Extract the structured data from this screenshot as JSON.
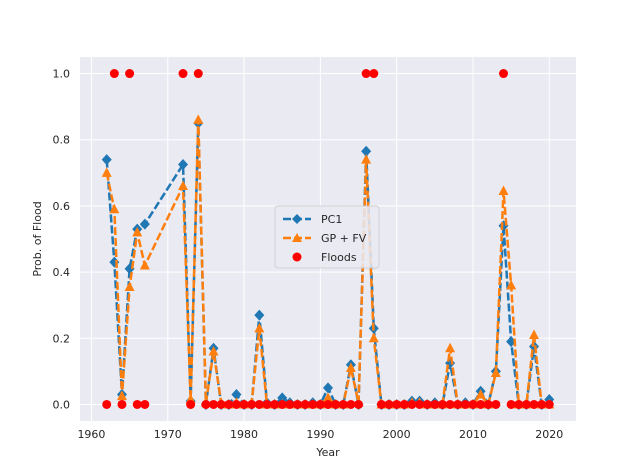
{
  "chart_data": {
    "type": "line",
    "title": "",
    "xlabel": "Year",
    "ylabel": "Prob. of Flood",
    "xlim": [
      1958.5,
      2023.5
    ],
    "ylim": [
      -0.05,
      1.05
    ],
    "xticks": [
      1960,
      1970,
      1980,
      1990,
      2000,
      2010,
      2020
    ],
    "yticks": [
      0.0,
      0.2,
      0.4,
      0.6,
      0.8,
      1.0
    ],
    "xtick_labels": [
      "1960",
      "1970",
      "1980",
      "1990",
      "2000",
      "2010",
      "2020"
    ],
    "ytick_labels": [
      "0.0",
      "0.2",
      "0.4",
      "0.6",
      "0.8",
      "1.0"
    ],
    "grid": true,
    "legend_position": "center",
    "x": [
      1962,
      1963,
      1964,
      1965,
      1966,
      1967,
      1972,
      1973,
      1974,
      1975,
      1976,
      1977,
      1978,
      1979,
      1980,
      1981,
      1982,
      1983,
      1984,
      1985,
      1986,
      1987,
      1988,
      1989,
      1990,
      1991,
      1992,
      1993,
      1994,
      1995,
      1996,
      1997,
      1998,
      1999,
      2000,
      2001,
      2002,
      2003,
      2004,
      2005,
      2006,
      2007,
      2008,
      2009,
      2010,
      2011,
      2012,
      2013,
      2014,
      2015,
      2016,
      2017,
      2018,
      2019,
      2020
    ],
    "series": [
      {
        "name": "PC1",
        "color": "#1f77b4",
        "marker": "diamond",
        "values": [
          0.74,
          0.43,
          0.03,
          0.41,
          0.53,
          0.545,
          0.725,
          0.01,
          0.85,
          0.0,
          0.17,
          0.0,
          0.0,
          0.03,
          0.0,
          0.0,
          0.27,
          0.005,
          0.0,
          0.02,
          0.005,
          0.0,
          0.0,
          0.005,
          0.0,
          0.05,
          0.0,
          0.0,
          0.12,
          0.0,
          0.765,
          0.23,
          0.0,
          0.0,
          0.0,
          0.0,
          0.01,
          0.01,
          0.0,
          0.005,
          0.0,
          0.125,
          0.0,
          0.005,
          0.0,
          0.04,
          0.0,
          0.1,
          0.54,
          0.19,
          0.0,
          0.0,
          0.175,
          0.0,
          0.015
        ]
      },
      {
        "name": "GP + FV",
        "color": "#ff7f0e",
        "marker": "triangle",
        "values": [
          0.7,
          0.59,
          0.025,
          0.355,
          0.52,
          0.42,
          0.66,
          0.015,
          0.86,
          0.005,
          0.16,
          0.005,
          0.0,
          0.005,
          0.0,
          0.005,
          0.23,
          0.0,
          0.0,
          0.0,
          0.0,
          0.0,
          0.0,
          0.0,
          0.0,
          0.02,
          0.0,
          0.0,
          0.11,
          0.005,
          0.74,
          0.2,
          0.0,
          0.0,
          0.0,
          0.0,
          0.005,
          0.005,
          0.0,
          0.0,
          0.0,
          0.17,
          0.0,
          0.0,
          0.0,
          0.03,
          0.0,
          0.095,
          0.645,
          0.36,
          0.0,
          0.0,
          0.21,
          0.0,
          0.0
        ]
      },
      {
        "name": "Floods",
        "color": "#ff0000",
        "marker": "circle",
        "points": [
          [
            1962,
            0
          ],
          [
            1963,
            1
          ],
          [
            1964,
            0
          ],
          [
            1965,
            1
          ],
          [
            1966,
            0
          ],
          [
            1967,
            0
          ],
          [
            1972,
            1
          ],
          [
            1973,
            0
          ],
          [
            1974,
            1
          ],
          [
            1975,
            0
          ],
          [
            1976,
            0
          ],
          [
            1977,
            0
          ],
          [
            1978,
            0
          ],
          [
            1979,
            0
          ],
          [
            1980,
            0
          ],
          [
            1981,
            0
          ],
          [
            1982,
            0
          ],
          [
            1983,
            0
          ],
          [
            1984,
            0
          ],
          [
            1985,
            0
          ],
          [
            1986,
            0
          ],
          [
            1987,
            0
          ],
          [
            1988,
            0
          ],
          [
            1989,
            0
          ],
          [
            1990,
            0
          ],
          [
            1991,
            0
          ],
          [
            1992,
            0
          ],
          [
            1993,
            0
          ],
          [
            1994,
            0
          ],
          [
            1995,
            0
          ],
          [
            1996,
            1
          ],
          [
            1997,
            1
          ],
          [
            1998,
            0
          ],
          [
            1999,
            0
          ],
          [
            2000,
            0
          ],
          [
            2001,
            0
          ],
          [
            2002,
            0
          ],
          [
            2003,
            0
          ],
          [
            2004,
            0
          ],
          [
            2005,
            0
          ],
          [
            2006,
            0
          ],
          [
            2007,
            0
          ],
          [
            2008,
            0
          ],
          [
            2009,
            0
          ],
          [
            2010,
            0
          ],
          [
            2011,
            0
          ],
          [
            2012,
            0
          ],
          [
            2013,
            0
          ],
          [
            2014,
            1
          ],
          [
            2015,
            0
          ],
          [
            2016,
            0
          ],
          [
            2017,
            0
          ],
          [
            2018,
            0
          ],
          [
            2019,
            0
          ],
          [
            2020,
            0
          ]
        ]
      }
    ]
  },
  "legend": {
    "items": [
      {
        "label": "PC1"
      },
      {
        "label": "GP + FV"
      },
      {
        "label": "Floods"
      }
    ]
  },
  "style": {
    "plot_background": "#eaeaf2",
    "grid_color": "#ffffff",
    "text_color": "#262626"
  }
}
